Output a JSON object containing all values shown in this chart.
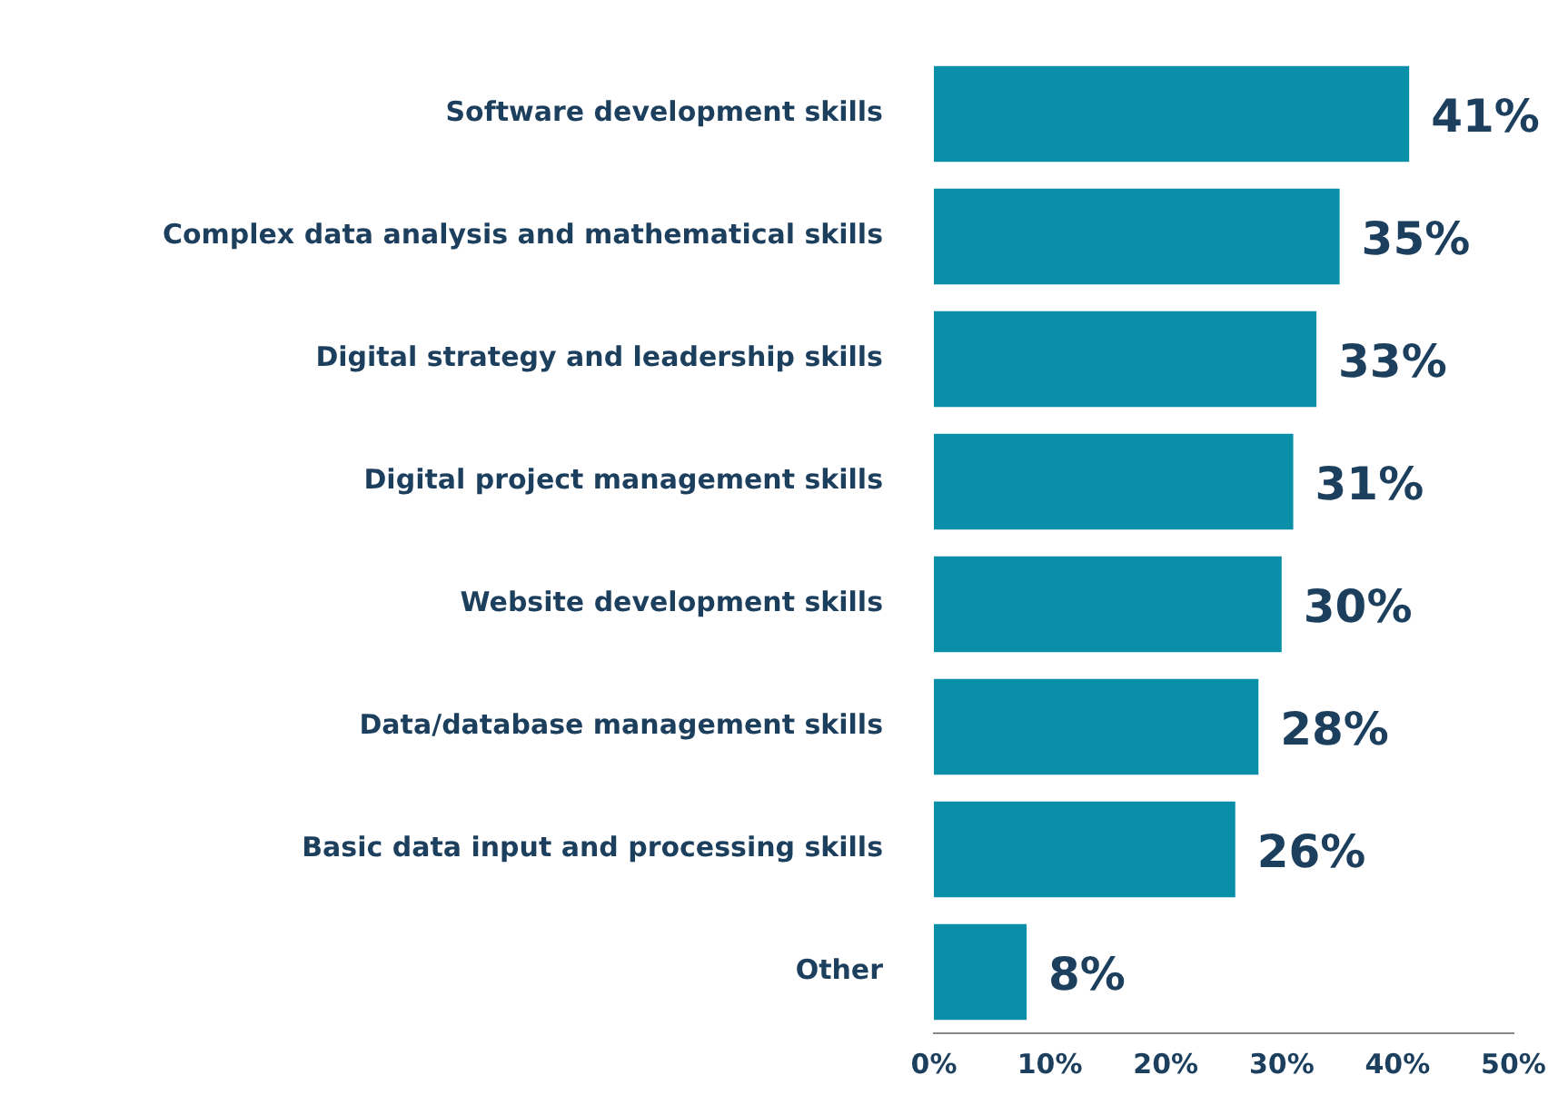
{
  "chart_data": {
    "type": "bar",
    "orientation": "horizontal",
    "categories": [
      "Software development skills",
      "Complex data analysis and mathematical skills",
      "Digital strategy and leadership skills",
      "Digital project management skills",
      "Website development skills",
      "Data/database management skills",
      "Basic data input and processing skills",
      "Other"
    ],
    "values": [
      41,
      35,
      33,
      31,
      30,
      28,
      26,
      8
    ],
    "value_labels": [
      "41%",
      "35%",
      "33%",
      "31%",
      "30%",
      "28%",
      "26%",
      "8%"
    ],
    "color": "#0a8fa8",
    "xlim": [
      0,
      50
    ],
    "xticks": [
      {
        "value": 0,
        "label": "0%"
      },
      {
        "value": 10,
        "label": "10%"
      },
      {
        "value": 20,
        "label": "20%"
      },
      {
        "value": 30,
        "label": "30%"
      },
      {
        "value": 40,
        "label": "40%"
      },
      {
        "value": 50,
        "label": "50%"
      }
    ],
    "grid": false,
    "legend": false
  }
}
